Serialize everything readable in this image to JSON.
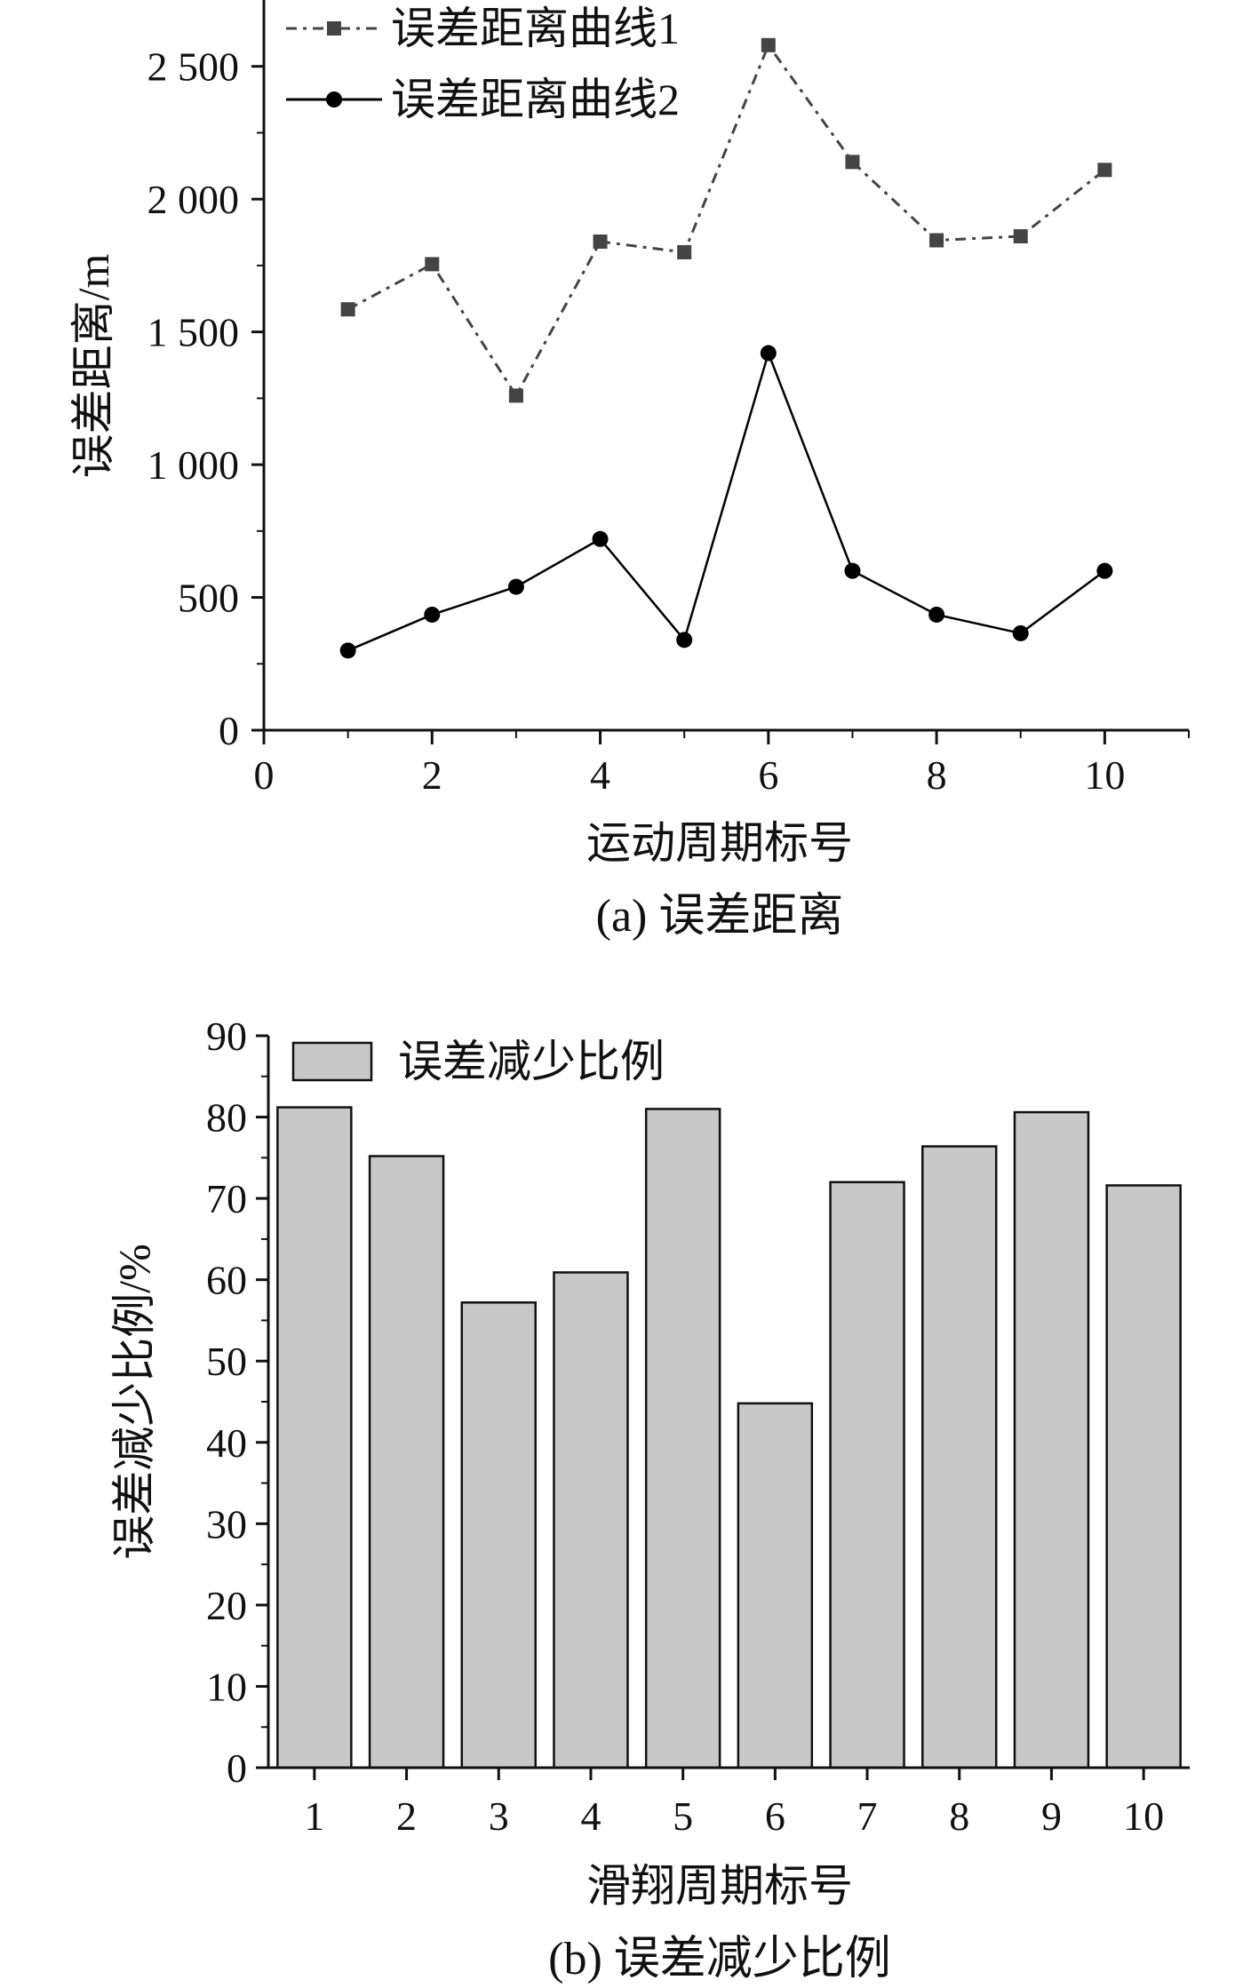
{
  "chart_data": [
    {
      "type": "line",
      "caption": "(a) 误差距离",
      "xlabel": "运动周期标号",
      "ylabel": "误差距离/m",
      "x": [
        1,
        2,
        3,
        4,
        5,
        6,
        7,
        8,
        9,
        10
      ],
      "xlim": [
        0,
        11
      ],
      "ylim": [
        0,
        2750
      ],
      "xticks": [
        0,
        2,
        4,
        6,
        8,
        10
      ],
      "xtick_labels": [
        "0",
        "2",
        "4",
        "6",
        "8",
        "10"
      ],
      "yticks": [
        0,
        500,
        1000,
        1500,
        2000,
        2500
      ],
      "ytick_labels": [
        "0",
        "500",
        "1 000",
        "1 500",
        "2 000",
        "2 500"
      ],
      "legend_position": "top-left",
      "grid": false,
      "series": [
        {
          "name": "误差距离曲线1",
          "marker": "square",
          "line_style": "dash-dot",
          "color": "#444444",
          "values": [
            1585,
            1755,
            1260,
            1840,
            1800,
            2580,
            2140,
            1845,
            1860,
            2110
          ]
        },
        {
          "name": "误差距离曲线2",
          "marker": "circle",
          "line_style": "solid",
          "color": "#000000",
          "values": [
            300,
            435,
            540,
            720,
            340,
            1420,
            600,
            435,
            365,
            600
          ]
        }
      ]
    },
    {
      "type": "bar",
      "caption": "(b) 误差减少比例",
      "xlabel": "滑翔周期标号",
      "ylabel": "误差减少比例/%",
      "categories": [
        "1",
        "2",
        "3",
        "4",
        "5",
        "6",
        "7",
        "8",
        "9",
        "10"
      ],
      "ylim": [
        0,
        90
      ],
      "yticks": [
        0,
        10,
        20,
        30,
        40,
        50,
        60,
        70,
        80,
        90
      ],
      "ytick_labels": [
        "0",
        "10",
        "20",
        "30",
        "40",
        "50",
        "60",
        "70",
        "80",
        "90"
      ],
      "legend_position": "top-left",
      "grid": false,
      "series": [
        {
          "name": "误差减少比例",
          "color": "#c8c8c8",
          "values": [
            81.2,
            75.2,
            57.2,
            60.9,
            81.0,
            44.8,
            72.0,
            76.4,
            80.6,
            71.6
          ]
        }
      ]
    }
  ]
}
